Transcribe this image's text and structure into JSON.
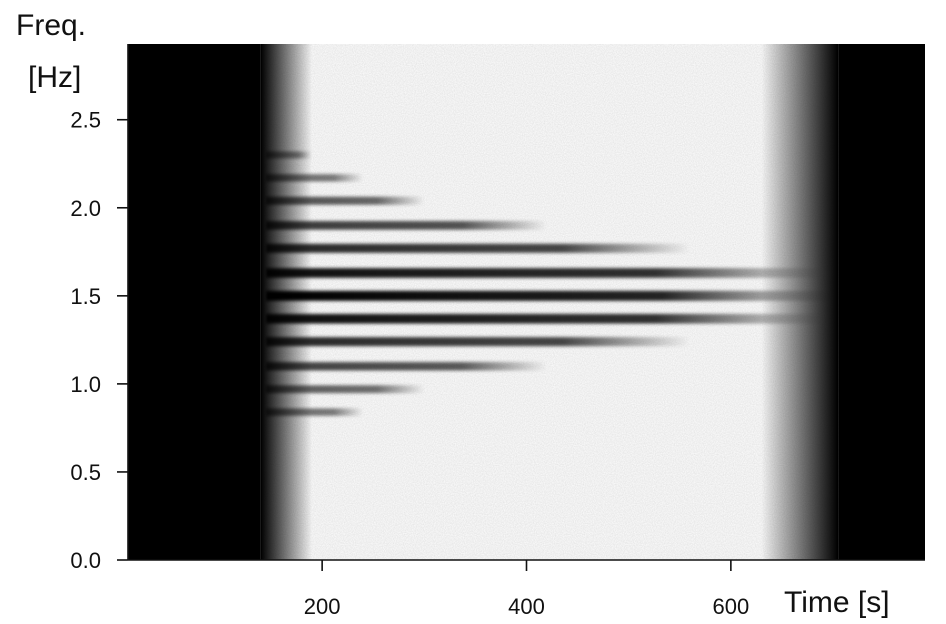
{
  "chart_data": {
    "type": "heatmap",
    "title": "",
    "xlabel": "Time [s]",
    "ylabel": [
      "Freq.",
      "[Hz]"
    ],
    "xlim": [
      10,
      790
    ],
    "ylim": [
      0.0,
      2.93
    ],
    "xticks": [
      200,
      400,
      600
    ],
    "xtick_labels": [
      "200",
      "400",
      "600"
    ],
    "yticks": [
      0.0,
      0.5,
      1.0,
      1.5,
      2.0,
      2.5
    ],
    "ytick_labels": [
      "0.0",
      "0.5",
      "1.0",
      "1.5",
      "2.0",
      "2.5"
    ],
    "colormap": [
      "#ffffff",
      "#000000"
    ],
    "background_regions": [
      {
        "name": "left-dark",
        "from": 10,
        "to": 190,
        "fade_from": 140
      },
      {
        "name": "right-dark",
        "from": 630,
        "to": 790,
        "fade_to": 705
      }
    ],
    "bands": [
      {
        "freq": 2.3,
        "start": 145,
        "end": 190,
        "intensity": 0.25
      },
      {
        "freq": 2.17,
        "start": 145,
        "end": 240,
        "intensity": 0.35
      },
      {
        "freq": 2.04,
        "start": 145,
        "end": 300,
        "intensity": 0.5
      },
      {
        "freq": 1.9,
        "start": 145,
        "end": 420,
        "intensity": 0.65
      },
      {
        "freq": 1.77,
        "start": 145,
        "end": 560,
        "intensity": 0.75
      },
      {
        "freq": 1.63,
        "start": 145,
        "end": 690,
        "intensity": 0.9
      },
      {
        "freq": 1.5,
        "start": 145,
        "end": 700,
        "intensity": 1.0
      },
      {
        "freq": 1.37,
        "start": 145,
        "end": 690,
        "intensity": 0.9
      },
      {
        "freq": 1.24,
        "start": 145,
        "end": 560,
        "intensity": 0.75
      },
      {
        "freq": 1.1,
        "start": 145,
        "end": 420,
        "intensity": 0.6
      },
      {
        "freq": 0.97,
        "start": 145,
        "end": 300,
        "intensity": 0.45
      },
      {
        "freq": 0.84,
        "start": 145,
        "end": 240,
        "intensity": 0.35
      }
    ]
  }
}
